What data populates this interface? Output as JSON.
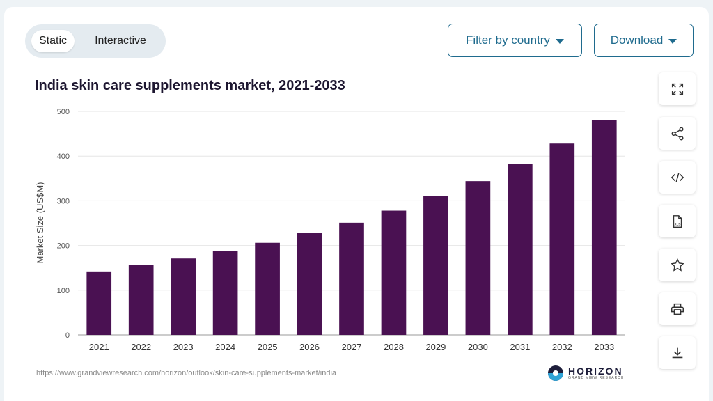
{
  "toggle": {
    "static_label": "Static",
    "interactive_label": "Interactive"
  },
  "buttons": {
    "filter_label": "Filter by country",
    "download_label": "Download"
  },
  "chart_data": {
    "type": "bar",
    "title": "India skin care supplements market, 2021-2033",
    "xlabel": "",
    "ylabel": "Market Size (US$M)",
    "categories": [
      "2021",
      "2022",
      "2023",
      "2024",
      "2025",
      "2026",
      "2027",
      "2028",
      "2029",
      "2030",
      "2031",
      "2032",
      "2033"
    ],
    "values": [
      142,
      156,
      171,
      187,
      206,
      228,
      251,
      278,
      310,
      344,
      383,
      428,
      480
    ],
    "yticks": [
      0,
      100,
      200,
      300,
      400,
      500
    ],
    "ylim": [
      0,
      500
    ],
    "bar_color": "#4a1152",
    "grid": true
  },
  "side_tools": [
    "expand-icon",
    "share-icon",
    "embed-code-icon",
    "xls-icon",
    "star-icon",
    "print-icon",
    "download-icon"
  ],
  "footer": {
    "source_url": "https://www.grandviewresearch.com/horizon/outlook/skin-care-supplements-market/india",
    "logo_text": "HORIZON",
    "logo_subtext": "GRAND VIEW RESEARCH"
  }
}
